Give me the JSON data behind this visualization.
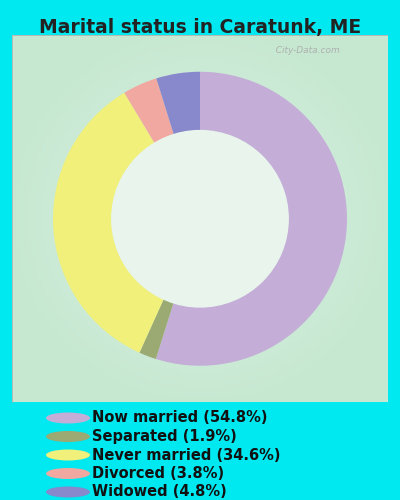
{
  "title": "Marital status in Caratunk, ME",
  "bg_cyan": "#00e8f0",
  "chart_bg_color": "#d8ede0",
  "slices": [
    {
      "label": "Now married (54.8%)",
      "value": 54.8,
      "color": "#c4aed8"
    },
    {
      "label": "Separated (1.9%)",
      "value": 1.9,
      "color": "#9aaa72"
    },
    {
      "label": "Never married (34.6%)",
      "value": 34.6,
      "color": "#f0f07a"
    },
    {
      "label": "Divorced (3.8%)",
      "value": 3.8,
      "color": "#f0a8a0"
    },
    {
      "label": "Widowed (4.8%)",
      "value": 4.8,
      "color": "#8888cc"
    }
  ],
  "legend_fontsize": 10.5,
  "title_fontsize": 13.5,
  "donut_width": 0.4,
  "pie_order_values": [
    54.8,
    1.9,
    34.6,
    3.8,
    4.8
  ],
  "pie_order_colors": [
    "#c4aed8",
    "#9aaa72",
    "#f0f07a",
    "#f0a8a0",
    "#8888cc"
  ]
}
